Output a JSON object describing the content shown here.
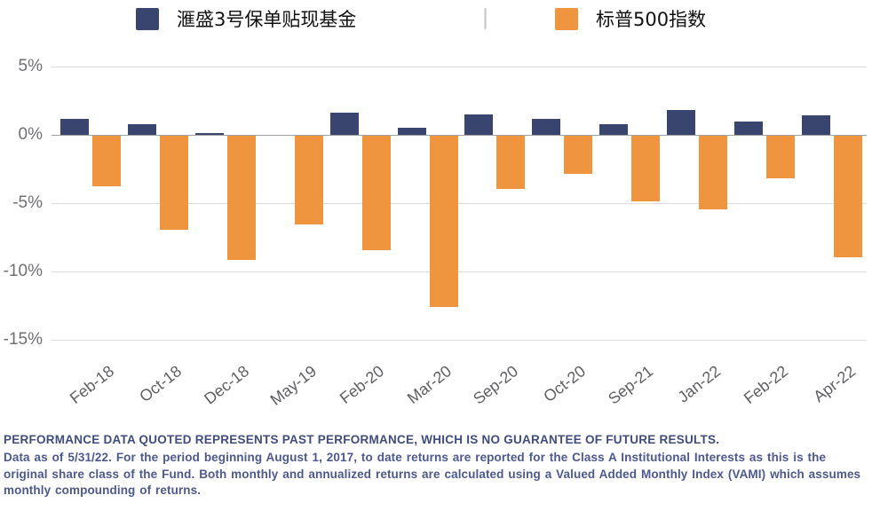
{
  "legend": {
    "series1_label": "滙盛3号保单贴现基金",
    "series2_label": "标普500指数"
  },
  "colors": {
    "fund": "#3A456F",
    "sp500": "#F0953F",
    "grid": "#dcdcdc",
    "zero_line": "#9ea0a4"
  },
  "chart_data": {
    "type": "bar",
    "categories": [
      "Feb-18",
      "Oct-18",
      "Dec-18",
      "May-19",
      "Feb-20",
      "Mar-20",
      "Sep-20",
      "Oct-20",
      "Sep-21",
      "Jan-22",
      "Feb-22",
      "Apr-22"
    ],
    "series": [
      {
        "name": "滙盛3号保单贴现基金",
        "color": "#3A456F",
        "values": [
          1.2,
          0.8,
          0.1,
          0.0,
          1.6,
          0.5,
          1.5,
          1.2,
          0.8,
          1.8,
          1.0,
          1.4
        ]
      },
      {
        "name": "标普500指数",
        "color": "#F0953F",
        "values": [
          -3.7,
          -6.9,
          -9.1,
          -6.5,
          -8.4,
          -12.5,
          -3.9,
          -2.8,
          -4.8,
          -5.4,
          -3.1,
          -8.9
        ]
      }
    ],
    "title": "",
    "xlabel": "",
    "ylabel": "",
    "y_ticks": [
      {
        "label": "5%",
        "value": 5
      },
      {
        "label": "0%",
        "value": 0
      },
      {
        "label": "-5%",
        "value": -5
      },
      {
        "label": "-10%",
        "value": -10
      },
      {
        "label": "-15%",
        "value": -15
      }
    ],
    "ylim": [
      -15.5,
      5
    ],
    "grid": true,
    "legend_position": "top"
  },
  "footer": {
    "title": "PERFORMANCE DATA QUOTED REPRESENTS PAST PERFORMANCE, WHICH IS NO GUARANTEE OF FUTURE RESULTS.",
    "body": "Data as of 5/31/22. For the period beginning August 1, 2017, to date returns are reported for the Class A Institutional Interests as this is the original share class of the Fund. Both monthly and annualized returns are calculated using a Valued Added Monthly Index (VAMI) which assumes monthly compounding of returns."
  }
}
